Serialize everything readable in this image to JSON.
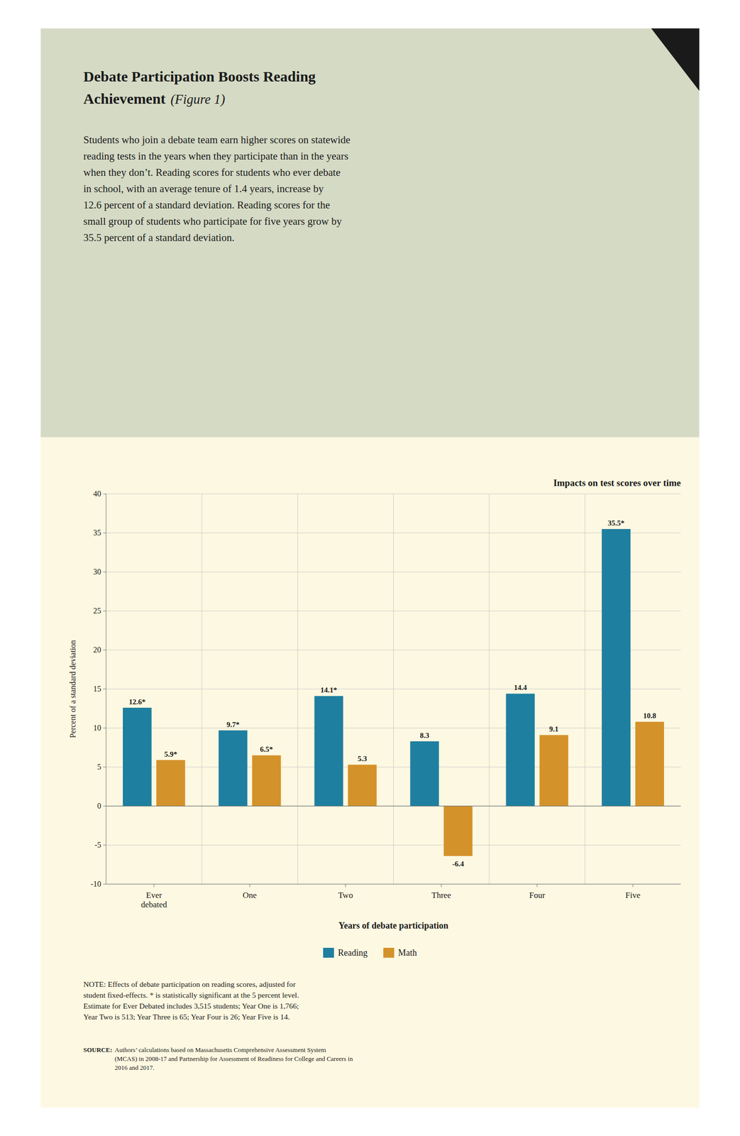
{
  "title_lines": [
    "Debate Participation Boosts Reading",
    "Achievement"
  ],
  "title_note": "(Figure 1)",
  "body_text": "Students who join a debate team earn higher scores on statewide\nreading tests in the years when they participate than in the years\nwhen they don’t. Reading scores for students who ever debate\nin school, with an average tenure of 1.4 years, increase by\n12.6 percent of a standard deviation. Reading scores for the\nsmall group of students who participate for five years grow by\n35.5 percent of a standard deviation.",
  "note_text": "NOTE: Effects of debate participation on reading scores, adjusted for\nstudent fixed-effects. * is statistically significant at the 5 percent level.\nEstimate for Ever Debated includes 3,515 students; Year One is 1,766;\nYear Two is 513; Year Three is 65; Year Four is 26; Year Five is 14.",
  "source_label": "SOURCE:",
  "source_text": "Authors’ calculations based on Massachusetts Comprehensive Assessment System\n(MCAS) in 2008-17 and Partnership for Assessment of Readiness for College and Careers in\n2016 and 2017.",
  "chart_data": {
    "type": "bar",
    "title": "Impacts on test scores over time",
    "xlabel": "Years of debate participation",
    "ylabel": "Percent of a standard deviation",
    "categories": [
      "Ever\ndebated",
      "One",
      "Two",
      "Three",
      "Four",
      "Five"
    ],
    "series": [
      {
        "name": "Reading",
        "color": "#1f7fa0",
        "values": [
          12.6,
          9.7,
          14.1,
          8.3,
          14.4,
          35.5
        ],
        "value_labels": [
          "12.6*",
          "9.7*",
          "14.1*",
          "8.3",
          "14.4",
          "35.5*"
        ]
      },
      {
        "name": "Math",
        "color": "#d4922a",
        "values": [
          5.9,
          6.5,
          5.3,
          -6.4,
          9.1,
          10.8
        ],
        "value_labels": [
          "5.9*",
          "6.5*",
          "5.3",
          "-6.4",
          "9.1",
          "10.8"
        ]
      }
    ],
    "ylim": [
      -10,
      40
    ],
    "yticks": [
      -10,
      -5,
      0,
      5,
      10,
      15,
      20,
      25,
      30,
      35,
      40
    ],
    "grid": true,
    "legend": "bottom",
    "data_labels": true
  }
}
